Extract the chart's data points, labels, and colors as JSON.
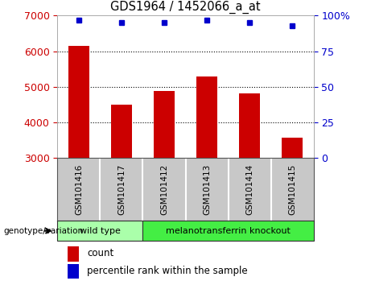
{
  "title": "GDS1964 / 1452066_a_at",
  "samples": [
    "GSM101416",
    "GSM101417",
    "GSM101412",
    "GSM101413",
    "GSM101414",
    "GSM101415"
  ],
  "counts": [
    6150,
    4500,
    4880,
    5300,
    4820,
    3580
  ],
  "percentile_ranks": [
    97,
    95,
    95,
    97,
    95,
    93
  ],
  "ylim_left": [
    3000,
    7000
  ],
  "ylim_right": [
    0,
    100
  ],
  "bar_color": "#cc0000",
  "dot_color": "#0000cc",
  "groups": [
    {
      "label": "wild type",
      "indices": [
        0,
        1
      ],
      "color": "#90ee90"
    },
    {
      "label": "melanotransferrin knockout",
      "indices": [
        2,
        3,
        4,
        5
      ],
      "color": "#33dd33"
    }
  ],
  "group_label": "genotype/variation",
  "legend_count_label": "count",
  "legend_pct_label": "percentile rank within the sample",
  "background_color": "#ffffff",
  "tick_label_color_left": "#cc0000",
  "tick_label_color_right": "#0000cc",
  "grid_color": "#000000",
  "yticks_left": [
    3000,
    4000,
    5000,
    6000,
    7000
  ],
  "yticks_right": [
    0,
    25,
    50,
    75,
    100
  ],
  "right_tick_labels": [
    "0",
    "25",
    "50",
    "75",
    "100%"
  ],
  "sample_bg_color": "#c8c8c8",
  "group1_color": "#aaffaa",
  "group2_color": "#44ee44"
}
